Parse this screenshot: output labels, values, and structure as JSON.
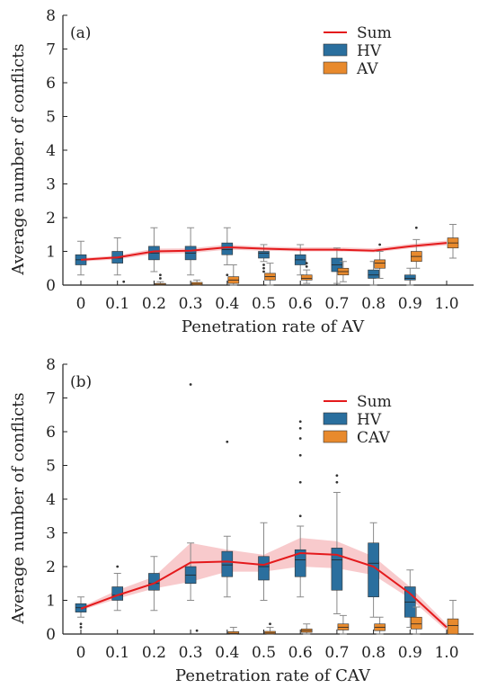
{
  "colors": {
    "sum": "#e41a1c",
    "band": "#f08a8f",
    "hv": "#2a6f9e",
    "av": "#e88a2d",
    "whisker": "#8a8a8a"
  },
  "chart_data": [
    {
      "type": "box",
      "panel_label": "(a)",
      "xlabel": "Penetration rate of AV",
      "ylabel": "Average number of conflicts",
      "ylim": [
        0,
        8
      ],
      "yticks": [
        "0",
        "1",
        "2",
        "3",
        "4",
        "5",
        "6",
        "7",
        "8"
      ],
      "categories": [
        "0",
        "0.1",
        "0.2",
        "0.3",
        "0.4",
        "0.5",
        "0.6",
        "0.7",
        "0.8",
        "0.9",
        "1.0"
      ],
      "legend": [
        "Sum",
        "HV",
        "AV"
      ],
      "sum": {
        "values": [
          0.75,
          0.82,
          1.0,
          1.02,
          1.12,
          1.08,
          1.05,
          1.05,
          1.02,
          1.15,
          1.25
        ],
        "lower": [
          0.7,
          0.76,
          0.92,
          0.95,
          1.05,
          1.02,
          1.0,
          1.0,
          0.97,
          1.09,
          1.18
        ],
        "upper": [
          0.8,
          0.88,
          1.08,
          1.09,
          1.2,
          1.14,
          1.12,
          1.12,
          1.09,
          1.22,
          1.32
        ]
      },
      "hv": [
        {
          "min": 0.3,
          "q1": 0.6,
          "median": 0.75,
          "q3": 0.9,
          "max": 1.3,
          "outliers": []
        },
        {
          "min": 0.3,
          "q1": 0.65,
          "median": 0.8,
          "q3": 1.0,
          "max": 1.4,
          "outliers": []
        },
        {
          "min": 0.4,
          "q1": 0.75,
          "median": 0.95,
          "q3": 1.15,
          "max": 1.7,
          "outliers": []
        },
        {
          "min": 0.3,
          "q1": 0.75,
          "median": 0.95,
          "q3": 1.15,
          "max": 1.7,
          "outliers": []
        },
        {
          "min": 0.6,
          "q1": 0.9,
          "median": 1.05,
          "q3": 1.25,
          "max": 1.7,
          "outliers": [
            0.3
          ]
        },
        {
          "min": 0.7,
          "q1": 0.8,
          "median": 0.95,
          "q3": 1.0,
          "max": 1.2,
          "outliers": [
            0.6,
            0.5,
            0.4
          ]
        },
        {
          "min": 0.3,
          "q1": 0.6,
          "median": 0.75,
          "q3": 0.9,
          "max": 1.2,
          "outliers": []
        },
        {
          "min": 0.05,
          "q1": 0.4,
          "median": 0.6,
          "q3": 0.8,
          "max": 1.1,
          "outliers": []
        },
        {
          "min": 0.0,
          "q1": 0.2,
          "median": 0.3,
          "q3": 0.45,
          "max": 0.7,
          "outliers": []
        },
        {
          "min": 0.0,
          "q1": 0.15,
          "median": 0.2,
          "q3": 0.3,
          "max": 0.5,
          "outliers": []
        }
      ],
      "av": [
        {
          "min": 0.0,
          "q1": 0.0,
          "median": 0.0,
          "q3": 0.0,
          "max": 0.0,
          "outliers": []
        },
        {
          "min": 0.0,
          "q1": 0.0,
          "median": 0.0,
          "q3": 0.0,
          "max": 0.0,
          "outliers": [
            0.1
          ]
        },
        {
          "min": 0.0,
          "q1": 0.0,
          "median": 0.02,
          "q3": 0.05,
          "max": 0.1,
          "outliers": [
            0.3,
            0.2
          ]
        },
        {
          "min": 0.0,
          "q1": 0.0,
          "median": 0.03,
          "q3": 0.08,
          "max": 0.15,
          "outliers": []
        },
        {
          "min": 0.0,
          "q1": 0.05,
          "median": 0.15,
          "q3": 0.25,
          "max": 0.6,
          "outliers": []
        },
        {
          "min": 0.0,
          "q1": 0.15,
          "median": 0.25,
          "q3": 0.35,
          "max": 0.65,
          "outliers": []
        },
        {
          "min": 0.05,
          "q1": 0.15,
          "median": 0.2,
          "q3": 0.3,
          "max": 0.45,
          "outliers": [
            0.65,
            0.55
          ]
        },
        {
          "min": 0.1,
          "q1": 0.3,
          "median": 0.4,
          "q3": 0.5,
          "max": 0.7,
          "outliers": []
        },
        {
          "min": 0.2,
          "q1": 0.5,
          "median": 0.65,
          "q3": 0.75,
          "max": 1.0,
          "outliers": [
            1.2
          ]
        },
        {
          "min": 0.5,
          "q1": 0.7,
          "median": 0.85,
          "q3": 1.0,
          "max": 1.35,
          "outliers": [
            1.7
          ]
        },
        {
          "min": 0.8,
          "q1": 1.1,
          "median": 1.25,
          "q3": 1.4,
          "max": 1.8,
          "outliers": []
        }
      ]
    },
    {
      "type": "box",
      "panel_label": "(b)",
      "xlabel": "Penetration rate of CAV",
      "ylabel": "Average number of conflicts",
      "ylim": [
        0,
        8
      ],
      "yticks": [
        "0",
        "1",
        "2",
        "3",
        "4",
        "5",
        "6",
        "7",
        "8"
      ],
      "categories": [
        "0",
        "0.1",
        "0.2",
        "0.3",
        "0.4",
        "0.5",
        "0.6",
        "0.7",
        "0.8",
        "0.9",
        "1.0"
      ],
      "legend": [
        "Sum",
        "HV",
        "CAV"
      ],
      "sum": {
        "values": [
          0.75,
          1.15,
          1.5,
          2.12,
          2.15,
          2.05,
          2.4,
          2.35,
          2.0,
          1.2,
          0.2
        ],
        "lower": [
          0.7,
          1.05,
          1.35,
          1.55,
          1.85,
          1.85,
          2.0,
          1.95,
          1.75,
          1.05,
          0.1
        ],
        "upper": [
          0.8,
          1.3,
          1.7,
          2.7,
          2.5,
          2.35,
          2.85,
          2.75,
          2.3,
          1.4,
          0.3
        ]
      },
      "hv": [
        {
          "min": 0.5,
          "q1": 0.65,
          "median": 0.78,
          "q3": 0.9,
          "max": 1.1,
          "outliers": [
            0.3,
            0.2
          ]
        },
        {
          "min": 0.7,
          "q1": 1.0,
          "median": 1.15,
          "q3": 1.4,
          "max": 1.8,
          "outliers": [
            2.0
          ]
        },
        {
          "min": 0.7,
          "q1": 1.3,
          "median": 1.5,
          "q3": 1.8,
          "max": 2.3,
          "outliers": []
        },
        {
          "min": 1.0,
          "q1": 1.5,
          "median": 1.75,
          "q3": 2.0,
          "max": 2.7,
          "outliers": [
            7.4
          ]
        },
        {
          "min": 1.1,
          "q1": 1.7,
          "median": 2.05,
          "q3": 2.45,
          "max": 2.9,
          "outliers": [
            5.7
          ]
        },
        {
          "min": 1.0,
          "q1": 1.6,
          "median": 2.0,
          "q3": 2.3,
          "max": 3.3,
          "outliers": []
        },
        {
          "min": 1.1,
          "q1": 1.7,
          "median": 2.2,
          "q3": 2.5,
          "max": 3.2,
          "outliers": [
            6.3,
            6.1,
            5.8,
            5.3,
            4.5,
            3.5
          ]
        },
        {
          "min": 0.6,
          "q1": 1.3,
          "median": 2.2,
          "q3": 2.55,
          "max": 4.2,
          "outliers": [
            4.7,
            4.5
          ]
        },
        {
          "min": 0.5,
          "q1": 1.1,
          "median": 2.1,
          "q3": 2.7,
          "max": 3.3,
          "outliers": []
        },
        {
          "min": 0.2,
          "q1": 0.5,
          "median": 0.95,
          "q3": 1.4,
          "max": 1.9,
          "outliers": []
        }
      ],
      "av": [
        {
          "min": 0.0,
          "q1": 0.0,
          "median": 0.0,
          "q3": 0.0,
          "max": 0.0,
          "outliers": []
        },
        {
          "min": 0.0,
          "q1": 0.0,
          "median": 0.0,
          "q3": 0.0,
          "max": 0.0,
          "outliers": []
        },
        {
          "min": 0.0,
          "q1": 0.0,
          "median": 0.0,
          "q3": 0.0,
          "max": 0.0,
          "outliers": []
        },
        {
          "min": 0.0,
          "q1": 0.0,
          "median": 0.0,
          "q3": 0.0,
          "max": 0.0,
          "outliers": [
            0.1
          ]
        },
        {
          "min": 0.0,
          "q1": 0.0,
          "median": 0.02,
          "q3": 0.07,
          "max": 0.2,
          "outliers": []
        },
        {
          "min": 0.0,
          "q1": 0.0,
          "median": 0.03,
          "q3": 0.08,
          "max": 0.2,
          "outliers": [
            0.3
          ]
        },
        {
          "min": 0.0,
          "q1": 0.05,
          "median": 0.1,
          "q3": 0.15,
          "max": 0.3,
          "outliers": []
        },
        {
          "min": 0.0,
          "q1": 0.12,
          "median": 0.2,
          "q3": 0.3,
          "max": 0.55,
          "outliers": []
        },
        {
          "min": 0.0,
          "q1": 0.1,
          "median": 0.2,
          "q3": 0.3,
          "max": 0.5,
          "outliers": []
        },
        {
          "min": 0.0,
          "q1": 0.15,
          "median": 0.3,
          "q3": 0.5,
          "max": 0.8,
          "outliers": []
        },
        {
          "min": 0.0,
          "q1": 0.0,
          "median": 0.25,
          "q3": 0.45,
          "max": 1.0,
          "outliers": []
        }
      ]
    }
  ]
}
